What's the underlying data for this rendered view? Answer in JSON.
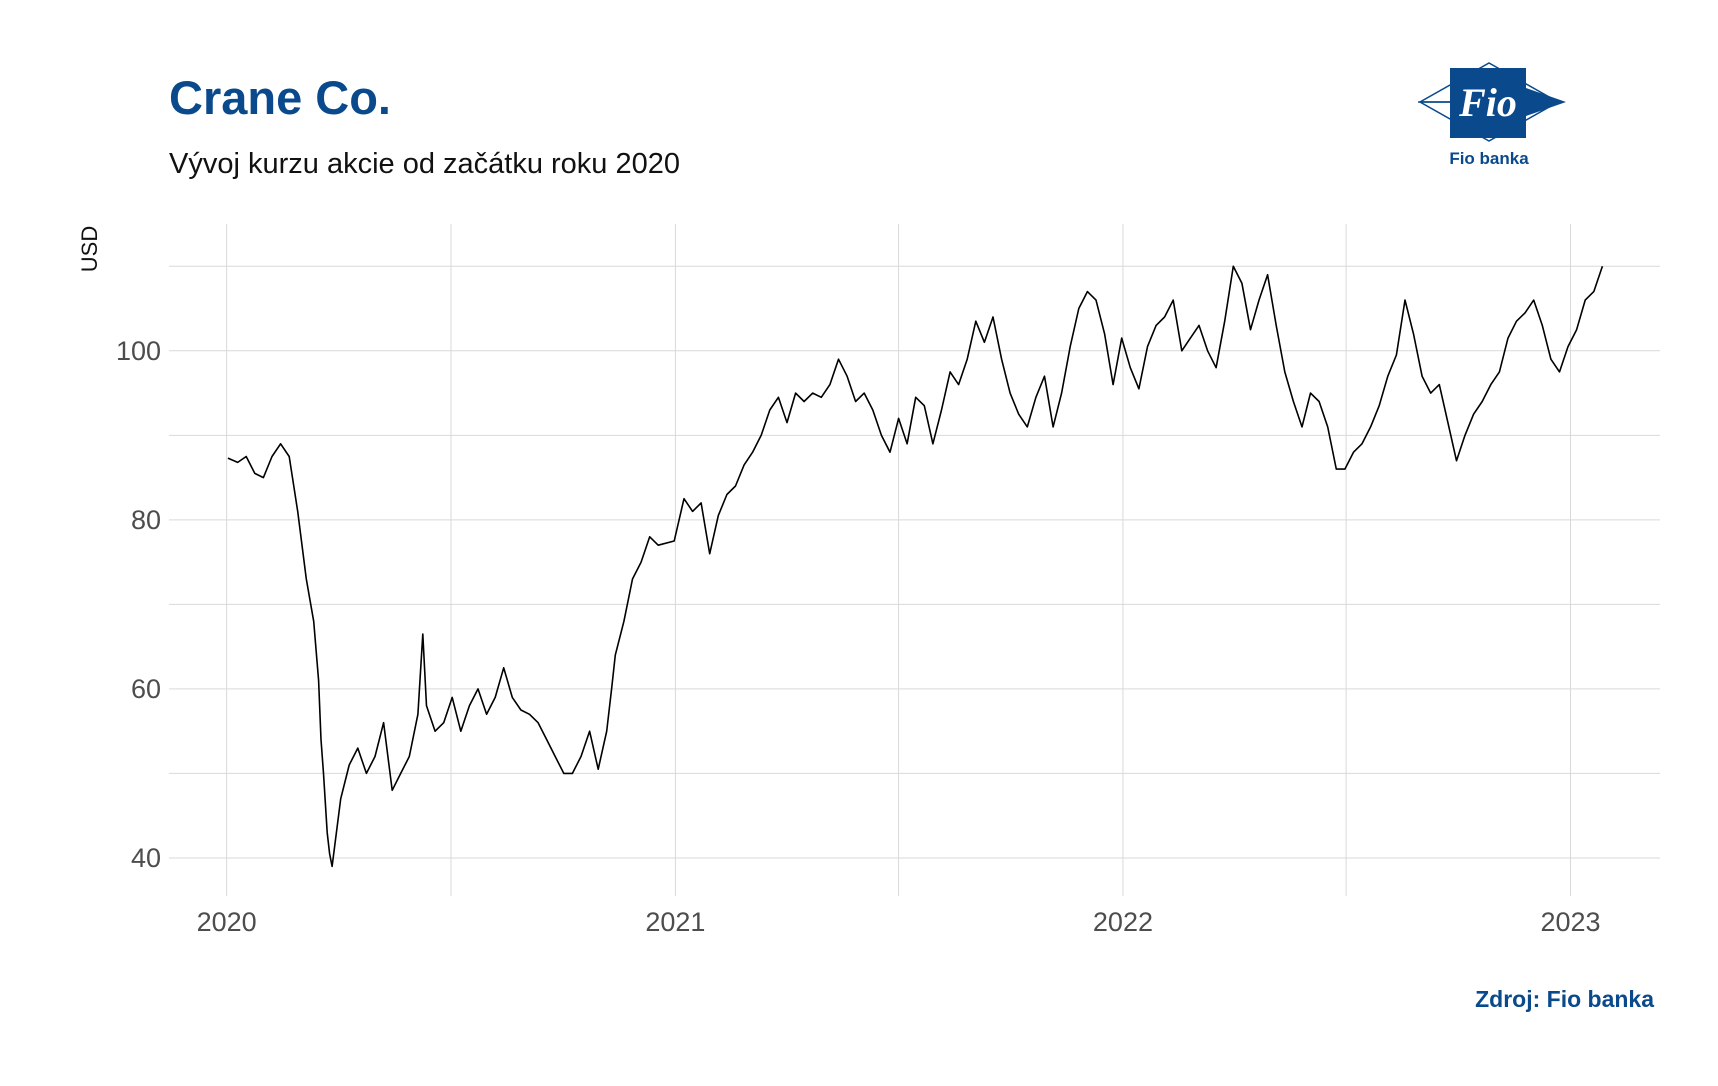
{
  "title": "Crane Co.",
  "subtitle": "Vývoj kurzu akcie od začátku roku 2020",
  "source": "Zdroj: Fio banka",
  "logo": {
    "mark": "Fio",
    "name": "Fio banka",
    "color": "#0a4a8c"
  },
  "colors": {
    "title": "#0a4a8c",
    "line": "#000000",
    "grid": "#d9d9d9",
    "axis_text": "#4d4d4d"
  },
  "chart_data": {
    "type": "line",
    "ylabel": "USD",
    "xlabel": "",
    "ylim": [
      35.5,
      115
    ],
    "xlim": [
      "2019-11-15",
      "2023-03-15"
    ],
    "yticks": [
      40,
      60,
      80,
      100
    ],
    "xticks": [
      {
        "label": "2020",
        "date": "2020-01-01"
      },
      {
        "label": "2021",
        "date": "2021-01-01"
      },
      {
        "label": "2022",
        "date": "2022-01-01"
      },
      {
        "label": "2023",
        "date": "2023-01-01"
      }
    ],
    "grid": true,
    "series": [
      {
        "values": [
          [
            "2020-01-02",
            87.3
          ],
          [
            "2020-01-10",
            86.8
          ],
          [
            "2020-01-17",
            87.5
          ],
          [
            "2020-01-24",
            85.5
          ],
          [
            "2020-01-31",
            85.0
          ],
          [
            "2020-02-07",
            87.5
          ],
          [
            "2020-02-14",
            89.0
          ],
          [
            "2020-02-21",
            87.5
          ],
          [
            "2020-02-28",
            81.0
          ],
          [
            "2020-03-06",
            73.0
          ],
          [
            "2020-03-12",
            68.0
          ],
          [
            "2020-03-16",
            61.0
          ],
          [
            "2020-03-18",
            54.0
          ],
          [
            "2020-03-20",
            50.0
          ],
          [
            "2020-03-23",
            43.0
          ],
          [
            "2020-03-25",
            40.5
          ],
          [
            "2020-03-27",
            39.0
          ],
          [
            "2020-04-03",
            47.0
          ],
          [
            "2020-04-10",
            51.0
          ],
          [
            "2020-04-17",
            53.0
          ],
          [
            "2020-04-24",
            50.0
          ],
          [
            "2020-05-01",
            52.0
          ],
          [
            "2020-05-08",
            56.0
          ],
          [
            "2020-05-15",
            48.0
          ],
          [
            "2020-05-22",
            50.0
          ],
          [
            "2020-05-29",
            52.0
          ],
          [
            "2020-06-05",
            57.0
          ],
          [
            "2020-06-09",
            66.5
          ],
          [
            "2020-06-12",
            58.0
          ],
          [
            "2020-06-19",
            55.0
          ],
          [
            "2020-06-26",
            56.0
          ],
          [
            "2020-07-03",
            59.0
          ],
          [
            "2020-07-10",
            55.0
          ],
          [
            "2020-07-17",
            58.0
          ],
          [
            "2020-07-24",
            60.0
          ],
          [
            "2020-07-31",
            57.0
          ],
          [
            "2020-08-07",
            59.0
          ],
          [
            "2020-08-14",
            62.5
          ],
          [
            "2020-08-21",
            59.0
          ],
          [
            "2020-08-28",
            57.5
          ],
          [
            "2020-09-04",
            57.0
          ],
          [
            "2020-09-11",
            56.0
          ],
          [
            "2020-09-18",
            54.0
          ],
          [
            "2020-09-25",
            52.0
          ],
          [
            "2020-10-02",
            50.0
          ],
          [
            "2020-10-09",
            50.0
          ],
          [
            "2020-10-16",
            52.0
          ],
          [
            "2020-10-23",
            55.0
          ],
          [
            "2020-10-30",
            50.5
          ],
          [
            "2020-11-06",
            55.0
          ],
          [
            "2020-11-10",
            60.0
          ],
          [
            "2020-11-13",
            64.0
          ],
          [
            "2020-11-20",
            68.0
          ],
          [
            "2020-11-27",
            73.0
          ],
          [
            "2020-12-04",
            75.0
          ],
          [
            "2020-12-11",
            78.0
          ],
          [
            "2020-12-18",
            77.0
          ],
          [
            "2020-12-31",
            77.5
          ],
          [
            "2021-01-08",
            82.5
          ],
          [
            "2021-01-15",
            81.0
          ],
          [
            "2021-01-22",
            82.0
          ],
          [
            "2021-01-29",
            76.0
          ],
          [
            "2021-02-05",
            80.5
          ],
          [
            "2021-02-12",
            83.0
          ],
          [
            "2021-02-19",
            84.0
          ],
          [
            "2021-02-26",
            86.5
          ],
          [
            "2021-03-05",
            88.0
          ],
          [
            "2021-03-12",
            90.0
          ],
          [
            "2021-03-19",
            93.0
          ],
          [
            "2021-03-26",
            94.5
          ],
          [
            "2021-04-02",
            91.5
          ],
          [
            "2021-04-09",
            95.0
          ],
          [
            "2021-04-16",
            94.0
          ],
          [
            "2021-04-23",
            95.0
          ],
          [
            "2021-04-30",
            94.5
          ],
          [
            "2021-05-07",
            96.0
          ],
          [
            "2021-05-14",
            99.0
          ],
          [
            "2021-05-21",
            97.0
          ],
          [
            "2021-05-28",
            94.0
          ],
          [
            "2021-06-04",
            95.0
          ],
          [
            "2021-06-11",
            93.0
          ],
          [
            "2021-06-18",
            90.0
          ],
          [
            "2021-06-25",
            88.0
          ],
          [
            "2021-07-02",
            92.0
          ],
          [
            "2021-07-09",
            89.0
          ],
          [
            "2021-07-16",
            94.5
          ],
          [
            "2021-07-23",
            93.5
          ],
          [
            "2021-07-30",
            89.0
          ],
          [
            "2021-08-06",
            93.0
          ],
          [
            "2021-08-13",
            97.5
          ],
          [
            "2021-08-20",
            96.0
          ],
          [
            "2021-08-27",
            99.0
          ],
          [
            "2021-09-03",
            103.5
          ],
          [
            "2021-09-10",
            101.0
          ],
          [
            "2021-09-17",
            104.0
          ],
          [
            "2021-09-24",
            99.0
          ],
          [
            "2021-10-01",
            95.0
          ],
          [
            "2021-10-08",
            92.5
          ],
          [
            "2021-10-15",
            91.0
          ],
          [
            "2021-10-22",
            94.5
          ],
          [
            "2021-10-29",
            97.0
          ],
          [
            "2021-11-05",
            91.0
          ],
          [
            "2021-11-12",
            95.0
          ],
          [
            "2021-11-19",
            100.5
          ],
          [
            "2021-11-26",
            105.0
          ],
          [
            "2021-12-03",
            107.0
          ],
          [
            "2021-12-10",
            106.0
          ],
          [
            "2021-12-17",
            102.0
          ],
          [
            "2021-12-24",
            96.0
          ],
          [
            "2021-12-31",
            101.5
          ],
          [
            "2022-01-07",
            98.0
          ],
          [
            "2022-01-14",
            95.5
          ],
          [
            "2022-01-21",
            100.5
          ],
          [
            "2022-01-28",
            103.0
          ],
          [
            "2022-02-04",
            104.0
          ],
          [
            "2022-02-11",
            106.0
          ],
          [
            "2022-02-18",
            100.0
          ],
          [
            "2022-02-25",
            101.5
          ],
          [
            "2022-03-04",
            103.0
          ],
          [
            "2022-03-11",
            100.0
          ],
          [
            "2022-03-18",
            98.0
          ],
          [
            "2022-03-25",
            103.5
          ],
          [
            "2022-04-01",
            110.0
          ],
          [
            "2022-04-08",
            108.0
          ],
          [
            "2022-04-15",
            102.5
          ],
          [
            "2022-04-22",
            106.0
          ],
          [
            "2022-04-29",
            109.0
          ],
          [
            "2022-05-06",
            103.0
          ],
          [
            "2022-05-13",
            97.5
          ],
          [
            "2022-05-20",
            94.0
          ],
          [
            "2022-05-27",
            91.0
          ],
          [
            "2022-06-03",
            95.0
          ],
          [
            "2022-06-10",
            94.0
          ],
          [
            "2022-06-17",
            91.0
          ],
          [
            "2022-06-24",
            86.0
          ],
          [
            "2022-07-01",
            86.0
          ],
          [
            "2022-07-08",
            88.0
          ],
          [
            "2022-07-15",
            89.0
          ],
          [
            "2022-07-22",
            91.0
          ],
          [
            "2022-07-29",
            93.5
          ],
          [
            "2022-08-05",
            97.0
          ],
          [
            "2022-08-12",
            99.5
          ],
          [
            "2022-08-19",
            106.0
          ],
          [
            "2022-08-26",
            102.0
          ],
          [
            "2022-09-02",
            97.0
          ],
          [
            "2022-09-09",
            95.0
          ],
          [
            "2022-09-16",
            96.0
          ],
          [
            "2022-09-23",
            91.5
          ],
          [
            "2022-09-30",
            87.0
          ],
          [
            "2022-10-07",
            90.0
          ],
          [
            "2022-10-14",
            92.5
          ],
          [
            "2022-10-21",
            94.0
          ],
          [
            "2022-10-28",
            96.0
          ],
          [
            "2022-11-04",
            97.5
          ],
          [
            "2022-11-11",
            101.5
          ],
          [
            "2022-11-18",
            103.5
          ],
          [
            "2022-11-25",
            104.5
          ],
          [
            "2022-12-02",
            106.0
          ],
          [
            "2022-12-09",
            103.0
          ],
          [
            "2022-12-16",
            99.0
          ],
          [
            "2022-12-23",
            97.5
          ],
          [
            "2022-12-30",
            100.5
          ],
          [
            "2023-01-06",
            102.5
          ],
          [
            "2023-01-13",
            106.0
          ],
          [
            "2023-01-20",
            107.0
          ],
          [
            "2023-01-27",
            110.0
          ]
        ]
      }
    ]
  }
}
